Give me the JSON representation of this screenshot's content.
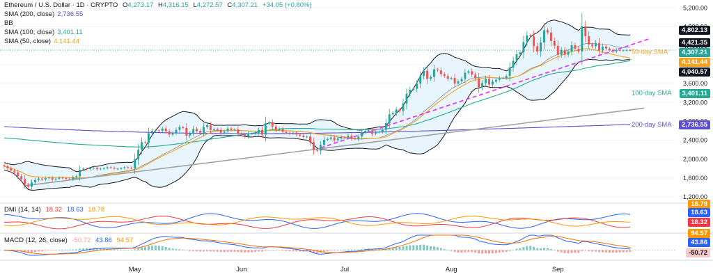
{
  "header": {
    "symbol": "Ethereum / U.S. Dollar · 1D · CRYPTO",
    "open_label": "O",
    "open": "4,273.17",
    "high_label": "H",
    "high": "4,316.15",
    "low_label": "L",
    "low": "4,272.57",
    "close_label": "C",
    "close": "4,307.21",
    "change": "+34.05 (+0.80%)"
  },
  "legend": {
    "sma200": {
      "label": "SMA (200, close)",
      "value": "2,736.55"
    },
    "bb": {
      "label": "BB"
    },
    "sma100": {
      "label": "SMA (100, close)",
      "value": "3,401.11"
    },
    "sma50": {
      "label": "SMA (50, close)",
      "value": "4,141.44"
    },
    "dmi": {
      "label": "DMI (14, 14)",
      "v1": "18.32",
      "v2": "18.63",
      "v3": "18.78"
    },
    "macd": {
      "label": "MACD (12, 26, close)",
      "v1": "-50.72",
      "v2": "43.86",
      "v3": "94.57"
    }
  },
  "colors": {
    "up": "#26a69a",
    "down": "#ef5350",
    "sma200": "#5b4fcf",
    "sma100": "#22ab94",
    "sma50": "#f7a21b",
    "bb": "#131722",
    "bb_fill": "#e3f2fd",
    "trend": "#e040fb",
    "support": "#a0a0a0",
    "dmi_plus": "#2962ff",
    "dmi_minus": "#f23645",
    "adx": "#ff9800",
    "macd": "#2962ff",
    "signal": "#ff6d00"
  },
  "annotations": {
    "sma50": "50-day SMA",
    "sma100": "100-day SMA",
    "sma200": "200-day SMA"
  },
  "price_badges": [
    {
      "value": "4,802.13",
      "bg": "#131722"
    },
    {
      "value": "4,421.35",
      "bg": "#131722"
    },
    {
      "value": "4,307.21",
      "bg": "#26a69a"
    },
    {
      "value": "4,141.44",
      "bg": "#f7a21b"
    },
    {
      "value": "4,040.57",
      "bg": "#131722"
    },
    {
      "value": "3,401.11",
      "bg": "#22ab94"
    },
    {
      "value": "2,736.55",
      "bg": "#5b4fcf"
    }
  ],
  "dmi_badges": [
    {
      "value": "18.78",
      "bg": "#ff9800"
    },
    {
      "value": "18.63",
      "bg": "#2962ff"
    },
    {
      "value": "18.32",
      "bg": "#f23645"
    }
  ],
  "macd_badges": [
    {
      "value": "94.57",
      "bg": "#ff9800"
    },
    {
      "value": "43.86",
      "bg": "#2962ff"
    },
    {
      "value": "-50.72",
      "bg": "#f8c9c9"
    }
  ],
  "chart_data": {
    "type": "candlestick",
    "x_labels": [
      "May",
      "Jun",
      "Jul",
      "Aug",
      "Sep"
    ],
    "y_ticks": [
      1200,
      1600,
      2000,
      2400,
      2800,
      3200,
      3600,
      4000,
      4400,
      4800,
      5200
    ],
    "ylim": [
      1100,
      5250
    ],
    "closes": [
      1850,
      1810,
      1760,
      1720,
      1640,
      1580,
      1460,
      1420,
      1510,
      1560,
      1590,
      1570,
      1600,
      1610,
      1570,
      1590,
      1610,
      1600,
      1590,
      1580,
      1620,
      1640,
      1780,
      1800,
      1790,
      1810,
      1820,
      1790,
      1800,
      1810,
      1830,
      1820,
      1800,
      1800,
      1810,
      1830,
      1820,
      1810,
      2000,
      2200,
      2360,
      2350,
      2550,
      2600,
      2610,
      2600,
      2650,
      2590,
      2520,
      2560,
      2620,
      2680,
      2660,
      2500,
      2550,
      2640,
      2600,
      2560,
      2680,
      2720,
      2620,
      2640,
      2620,
      2560,
      2590,
      2650,
      2620,
      2630,
      2540,
      2520,
      2480,
      2540,
      2540,
      2560,
      2620,
      2520,
      2760,
      2780,
      2690,
      2620,
      2640,
      2580,
      2560,
      2540,
      2560,
      2520,
      2500,
      2470,
      2480,
      2360,
      2200,
      2180,
      2300,
      2410,
      2430,
      2460,
      2400,
      2440,
      2470,
      2460,
      2500,
      2440,
      2430,
      2480,
      2570,
      2600,
      2610,
      2540,
      2570,
      2580,
      2620,
      2760,
      2950,
      2980,
      3050,
      3020,
      3180,
      3380,
      3470,
      3490,
      3600,
      3760,
      3870,
      3700,
      3740,
      3900,
      3880,
      3800,
      3760,
      3700,
      3720,
      3600,
      3650,
      3700,
      3830,
      3860,
      3790,
      3710,
      3520,
      3610,
      3700,
      3580,
      3640,
      3680,
      3720,
      3720,
      3760,
      3940,
      4080,
      4220,
      4260,
      4480,
      4620,
      4600,
      4390,
      4280,
      4470,
      4730,
      4680,
      4500,
      4400,
      4210,
      4310,
      4210,
      4280,
      4410,
      4340,
      4280,
      4810,
      4600,
      4430,
      4390,
      4460,
      4300,
      4380,
      4340,
      4310,
      4280,
      4310,
      4300,
      4300,
      4310,
      4307
    ],
    "sma200_start": 2690,
    "sma200_min": 2460,
    "sma200_end": 2736,
    "sma100_start": 2450,
    "sma100_end": 3401,
    "sma50_end": 4141,
    "trend_line": [
      {
        "i": 94,
        "price": 2240
      },
      {
        "i": 188,
        "price": 4560
      }
    ],
    "support_line": [
      {
        "i": 6,
        "price": 1440
      },
      {
        "i": 190,
        "price": 3080
      }
    ],
    "dmi_range": [
      10,
      45
    ],
    "macd_range": [
      -150,
      260
    ]
  }
}
